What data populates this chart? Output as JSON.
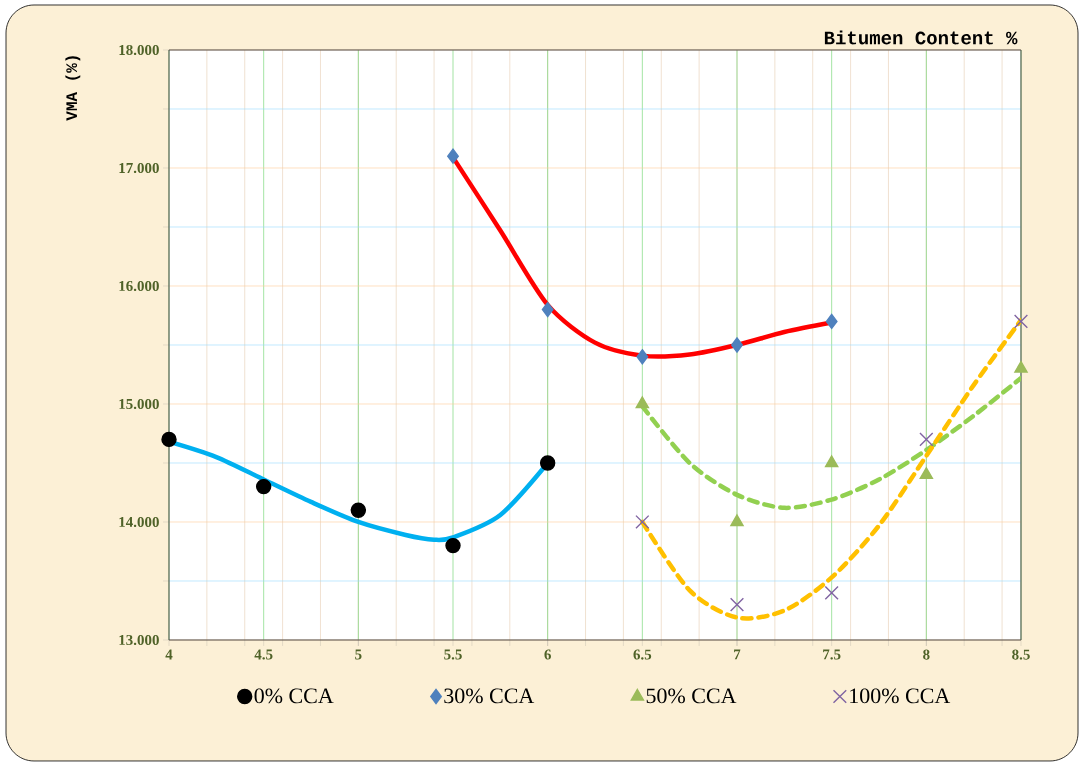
{
  "chart_data": {
    "type": "scatter",
    "xlabel": "Bitumen Content %",
    "ylabel": "VMA (%)",
    "xlim": [
      4,
      8.5
    ],
    "xticks": [
      4,
      4.5,
      5,
      5.5,
      6,
      6.5,
      7,
      7.5,
      8,
      8.5
    ],
    "ylim": [
      13,
      18
    ],
    "yticks": [
      {
        "value": 13,
        "label": "13.000"
      },
      {
        "value": 13.5,
        "label": null
      },
      {
        "value": 14,
        "label": "14.000"
      },
      {
        "value": 14.5,
        "label": null
      },
      {
        "value": 15,
        "label": "15.000"
      },
      {
        "value": 15.5,
        "label": null
      },
      {
        "value": 16,
        "label": "16.000"
      },
      {
        "value": 16.5,
        "label": null
      },
      {
        "value": 17,
        "label": "17.000"
      },
      {
        "value": 17.5,
        "label": null
      },
      {
        "value": 18,
        "label": "18.000"
      }
    ],
    "grid": true,
    "legend": "bottom",
    "series": [
      {
        "name": "0% CCA",
        "marker": "circle",
        "color": "#000000",
        "x": [
          4,
          4.5,
          5,
          5.5,
          6
        ],
        "values": [
          14.7,
          14.3,
          14.1,
          13.8,
          14.5
        ]
      },
      {
        "name": "30% CCA",
        "marker": "diamond",
        "color": "#4f81bd",
        "x": [
          5.5,
          6,
          6.5,
          7,
          7.5
        ],
        "values": [
          17.1,
          15.8,
          15.4,
          15.5,
          15.7
        ]
      },
      {
        "name": "50% CCA",
        "marker": "triangle",
        "color": "#9bbb59",
        "x": [
          6.5,
          7,
          7.5,
          8,
          8.5
        ],
        "values": [
          15.0,
          14.0,
          14.5,
          14.4,
          15.3
        ]
      },
      {
        "name": "100% CCA",
        "marker": "cross",
        "color": "#8064a2",
        "x": [
          6.5,
          7,
          7.5,
          8,
          8.5
        ],
        "values": [
          14.0,
          13.3,
          13.4,
          14.7,
          15.7
        ]
      },
      {
        "type": "line",
        "marker": "none",
        "line_style": "solid",
        "color": "#00b0f0",
        "x": [
          4,
          4.25,
          4.5,
          4.75,
          5,
          5.25,
          5.4,
          5.5,
          5.75,
          6
        ],
        "values": [
          14.68,
          14.55,
          14.36,
          14.17,
          14.0,
          13.89,
          13.85,
          13.87,
          14.06,
          14.5
        ]
      },
      {
        "type": "line",
        "marker": "none",
        "line_style": "solid",
        "color": "#ff0000",
        "x": [
          5.5,
          5.75,
          6,
          6.25,
          6.5,
          6.75,
          7,
          7.25,
          7.5
        ],
        "values": [
          17.09,
          16.47,
          15.84,
          15.52,
          15.41,
          15.42,
          15.5,
          15.61,
          15.69
        ]
      },
      {
        "type": "line",
        "marker": "none",
        "line_style": "dashed",
        "color": "#92d050",
        "x": [
          6.5,
          6.75,
          7,
          7.25,
          7.5,
          7.75,
          8,
          8.25,
          8.5
        ],
        "values": [
          14.98,
          14.5,
          14.23,
          14.12,
          14.19,
          14.36,
          14.61,
          14.9,
          15.22
        ]
      },
      {
        "type": "line",
        "marker": "none",
        "line_style": "dashed",
        "color": "#ffc000",
        "x": [
          6.5,
          6.75,
          7,
          7.25,
          7.5,
          7.75,
          8,
          8.25,
          8.5
        ],
        "values": [
          14.0,
          13.42,
          13.19,
          13.25,
          13.53,
          13.97,
          14.56,
          15.16,
          15.71
        ]
      }
    ]
  }
}
